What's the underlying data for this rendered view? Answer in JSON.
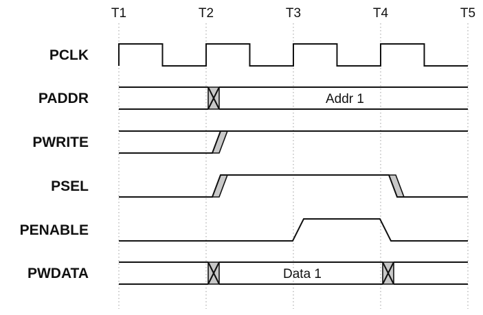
{
  "diagram": {
    "ticks": [
      "T1",
      "T2",
      "T3",
      "T4",
      "T5"
    ],
    "signals": [
      {
        "name": "PCLK",
        "kind": "clock"
      },
      {
        "name": "PADDR",
        "kind": "bus",
        "value": "Addr 1",
        "changes": [
          1
        ]
      },
      {
        "name": "PWRITE",
        "kind": "bit",
        "initial": 0,
        "edges": [
          {
            "at": 1,
            "to": 1
          }
        ]
      },
      {
        "name": "PSEL",
        "kind": "bit",
        "initial": 0,
        "edges": [
          {
            "at": 1,
            "to": 1
          },
          {
            "at": 3,
            "to": 0
          }
        ]
      },
      {
        "name": "PENABLE",
        "kind": "bit",
        "initial": 0,
        "edges": [
          {
            "at": 2,
            "to": 1
          },
          {
            "at": 3,
            "to": 0
          }
        ],
        "plain": true
      },
      {
        "name": "PWDATA",
        "kind": "bus",
        "value": "Data 1",
        "changes": [
          1,
          3
        ]
      }
    ]
  }
}
